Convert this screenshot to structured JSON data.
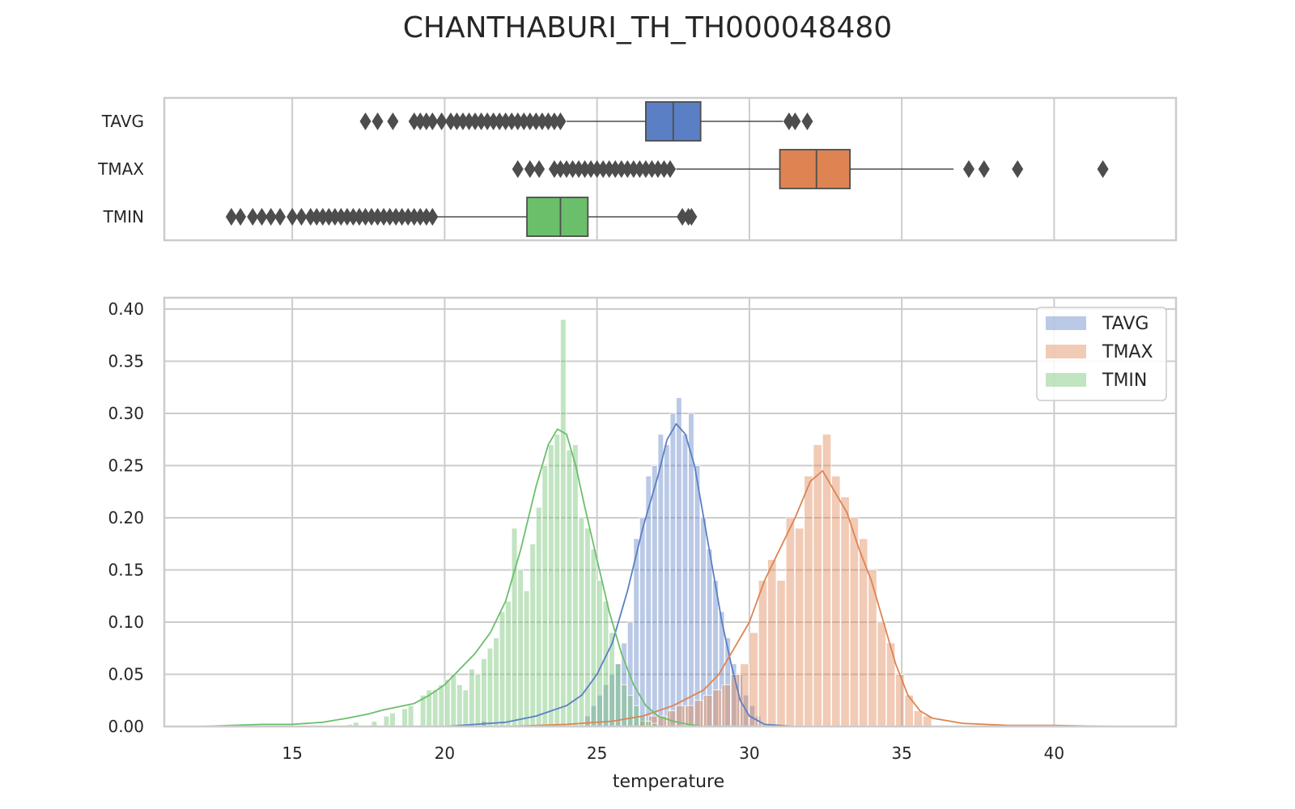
{
  "chart_data": [
    {
      "type": "box",
      "title": "CHANTHABURI_TH_TH000048480",
      "orientation": "horizontal",
      "grid": true,
      "xlim": [
        10.8,
        44.0
      ],
      "series": [
        {
          "name": "TAVG",
          "color": "#5b7fc4",
          "q1": 26.6,
          "median": 27.5,
          "q3": 28.4,
          "whisker_low": 24.0,
          "whisker_high": 31.1,
          "outliers_low": [
            17.4,
            17.8,
            18.3,
            19.0,
            19.2,
            19.4,
            19.6,
            19.9,
            20.2,
            20.4,
            20.6,
            20.8,
            21.0,
            21.2,
            21.4,
            21.6,
            21.8,
            22.0,
            22.2,
            22.4,
            22.6,
            22.8,
            23.0,
            23.2,
            23.4,
            23.6,
            23.8
          ],
          "outliers_high": [
            31.3,
            31.5,
            31.9
          ]
        },
        {
          "name": "TMAX",
          "color": "#dd8452",
          "q1": 31.0,
          "median": 32.2,
          "q3": 33.3,
          "whisker_low": 27.6,
          "whisker_high": 36.7,
          "outliers_low": [
            22.4,
            22.8,
            23.1,
            23.6,
            23.8,
            24.0,
            24.2,
            24.4,
            24.6,
            24.8,
            25.0,
            25.2,
            25.4,
            25.6,
            25.8,
            26.0,
            26.2,
            26.4,
            26.6,
            26.8,
            27.0,
            27.2,
            27.4
          ],
          "outliers_high": [
            37.2,
            37.7,
            38.8,
            41.6
          ]
        },
        {
          "name": "TMIN",
          "color": "#6bbf6b",
          "q1": 22.7,
          "median": 23.8,
          "q3": 24.7,
          "whisker_low": 19.7,
          "whisker_high": 27.7,
          "outliers_low": [
            13.0,
            13.3,
            13.7,
            14.0,
            14.3,
            14.6,
            15.0,
            15.3,
            15.6,
            15.8,
            16.0,
            16.2,
            16.4,
            16.6,
            16.8,
            17.0,
            17.2,
            17.4,
            17.6,
            17.8,
            18.0,
            18.2,
            18.4,
            18.6,
            18.8,
            19.0,
            19.2,
            19.4,
            19.6
          ],
          "outliers_high": [
            27.8,
            28.0,
            28.1
          ]
        }
      ]
    },
    {
      "type": "histogram",
      "xlabel": "temperature",
      "ylabel": "",
      "xlim": [
        10.8,
        44.0
      ],
      "ylim": [
        0.0,
        0.4
      ],
      "xticks": [
        15,
        20,
        25,
        30,
        35,
        40
      ],
      "yticks": [
        "0.00",
        "0.05",
        "0.10",
        "0.15",
        "0.20",
        "0.25",
        "0.30",
        "0.35",
        "0.40"
      ],
      "grid": true,
      "legend": {
        "position": "top-right"
      },
      "series": [
        {
          "name": "TAVG",
          "color": "#5b7fc4",
          "bin_width": 0.2,
          "bins": [
            [
              21.2,
              0.005
            ],
            [
              24.6,
              0.01
            ],
            [
              24.8,
              0.02
            ],
            [
              25.0,
              0.03
            ],
            [
              25.2,
              0.04
            ],
            [
              25.4,
              0.05
            ],
            [
              25.6,
              0.06
            ],
            [
              25.8,
              0.08
            ],
            [
              26.0,
              0.1
            ],
            [
              26.2,
              0.18
            ],
            [
              26.4,
              0.2
            ],
            [
              26.6,
              0.24
            ],
            [
              26.8,
              0.25
            ],
            [
              27.0,
              0.28
            ],
            [
              27.2,
              0.27
            ],
            [
              27.4,
              0.3
            ],
            [
              27.6,
              0.315
            ],
            [
              27.8,
              0.28
            ],
            [
              28.0,
              0.3
            ],
            [
              28.2,
              0.25
            ],
            [
              28.4,
              0.2
            ],
            [
              28.6,
              0.17
            ],
            [
              28.8,
              0.14
            ],
            [
              29.0,
              0.11
            ],
            [
              29.2,
              0.085
            ],
            [
              29.4,
              0.06
            ],
            [
              29.6,
              0.05
            ],
            [
              29.8,
              0.03
            ],
            [
              30.0,
              0.02
            ],
            [
              30.2,
              0.01
            ]
          ],
          "kde": [
            [
              20.0,
              0.0
            ],
            [
              21.0,
              0.002
            ],
            [
              22.0,
              0.004
            ],
            [
              23.0,
              0.01
            ],
            [
              24.0,
              0.02
            ],
            [
              24.5,
              0.03
            ],
            [
              25.0,
              0.05
            ],
            [
              25.5,
              0.08
            ],
            [
              26.0,
              0.13
            ],
            [
              26.5,
              0.19
            ],
            [
              27.0,
              0.24
            ],
            [
              27.3,
              0.275
            ],
            [
              27.6,
              0.29
            ],
            [
              27.9,
              0.28
            ],
            [
              28.2,
              0.25
            ],
            [
              28.5,
              0.2
            ],
            [
              28.8,
              0.15
            ],
            [
              29.1,
              0.1
            ],
            [
              29.4,
              0.06
            ],
            [
              29.7,
              0.025
            ],
            [
              30.0,
              0.01
            ],
            [
              30.5,
              0.002
            ],
            [
              31.5,
              0.0
            ]
          ]
        },
        {
          "name": "TMAX",
          "color": "#dd8452",
          "bin_width": 0.3,
          "bins": [
            [
              26.4,
              0.005
            ],
            [
              26.7,
              0.01
            ],
            [
              27.0,
              0.01
            ],
            [
              27.3,
              0.015
            ],
            [
              27.6,
              0.02
            ],
            [
              27.9,
              0.02
            ],
            [
              28.2,
              0.025
            ],
            [
              28.5,
              0.03
            ],
            [
              28.8,
              0.035
            ],
            [
              29.1,
              0.04
            ],
            [
              29.4,
              0.05
            ],
            [
              29.7,
              0.06
            ],
            [
              30.0,
              0.09
            ],
            [
              30.3,
              0.14
            ],
            [
              30.6,
              0.16
            ],
            [
              30.9,
              0.14
            ],
            [
              31.2,
              0.2
            ],
            [
              31.5,
              0.19
            ],
            [
              31.8,
              0.24
            ],
            [
              32.1,
              0.27
            ],
            [
              32.4,
              0.28
            ],
            [
              32.7,
              0.24
            ],
            [
              33.0,
              0.22
            ],
            [
              33.3,
              0.2
            ],
            [
              33.6,
              0.18
            ],
            [
              33.9,
              0.15
            ],
            [
              34.2,
              0.1
            ],
            [
              34.5,
              0.08
            ],
            [
              34.8,
              0.05
            ],
            [
              35.1,
              0.03
            ],
            [
              35.4,
              0.015
            ],
            [
              35.7,
              0.01
            ]
          ],
          "kde": [
            [
              22.0,
              0.0
            ],
            [
              24.0,
              0.002
            ],
            [
              25.5,
              0.005
            ],
            [
              26.5,
              0.01
            ],
            [
              27.5,
              0.02
            ],
            [
              28.5,
              0.035
            ],
            [
              29.0,
              0.05
            ],
            [
              29.5,
              0.075
            ],
            [
              30.0,
              0.1
            ],
            [
              30.5,
              0.14
            ],
            [
              31.0,
              0.17
            ],
            [
              31.5,
              0.2
            ],
            [
              32.0,
              0.235
            ],
            [
              32.4,
              0.245
            ],
            [
              32.8,
              0.225
            ],
            [
              33.2,
              0.205
            ],
            [
              33.6,
              0.17
            ],
            [
              34.0,
              0.14
            ],
            [
              34.4,
              0.1
            ],
            [
              34.8,
              0.06
            ],
            [
              35.2,
              0.03
            ],
            [
              35.6,
              0.015
            ],
            [
              36.0,
              0.008
            ],
            [
              37.0,
              0.003
            ],
            [
              38.5,
              0.001
            ],
            [
              40.0,
              0.001
            ],
            [
              42.0,
              0.0
            ]
          ]
        },
        {
          "name": "TMIN",
          "color": "#6bbf6b",
          "bin_width": 0.2,
          "bins": [
            [
              16.8,
              0.002
            ],
            [
              17.0,
              0.004
            ],
            [
              17.6,
              0.005
            ],
            [
              18.0,
              0.01
            ],
            [
              18.2,
              0.013
            ],
            [
              18.6,
              0.017
            ],
            [
              18.8,
              0.02
            ],
            [
              19.2,
              0.03
            ],
            [
              19.4,
              0.035
            ],
            [
              19.6,
              0.035
            ],
            [
              19.8,
              0.04
            ],
            [
              20.0,
              0.045
            ],
            [
              20.2,
              0.05
            ],
            [
              20.4,
              0.04
            ],
            [
              20.6,
              0.035
            ],
            [
              20.8,
              0.055
            ],
            [
              21.0,
              0.05
            ],
            [
              21.2,
              0.065
            ],
            [
              21.4,
              0.075
            ],
            [
              21.6,
              0.085
            ],
            [
              21.8,
              0.11
            ],
            [
              22.0,
              0.12
            ],
            [
              22.2,
              0.19
            ],
            [
              22.4,
              0.15
            ],
            [
              22.6,
              0.13
            ],
            [
              22.8,
              0.175
            ],
            [
              23.0,
              0.21
            ],
            [
              23.2,
              0.25
            ],
            [
              23.4,
              0.27
            ],
            [
              23.6,
              0.28
            ],
            [
              23.8,
              0.39
            ],
            [
              24.0,
              0.265
            ],
            [
              24.2,
              0.27
            ],
            [
              24.4,
              0.2
            ],
            [
              24.6,
              0.19
            ],
            [
              24.8,
              0.17
            ],
            [
              25.0,
              0.14
            ],
            [
              25.2,
              0.12
            ],
            [
              25.4,
              0.09
            ],
            [
              25.6,
              0.06
            ],
            [
              25.8,
              0.04
            ],
            [
              26.0,
              0.03
            ],
            [
              26.2,
              0.02
            ],
            [
              26.4,
              0.01
            ],
            [
              26.6,
              0.005
            ],
            [
              26.8,
              0.003
            ]
          ],
          "kde": [
            [
              12.0,
              0.0
            ],
            [
              13.0,
              0.001
            ],
            [
              14.0,
              0.002
            ],
            [
              15.0,
              0.002
            ],
            [
              16.0,
              0.004
            ],
            [
              16.8,
              0.008
            ],
            [
              17.5,
              0.012
            ],
            [
              18.0,
              0.016
            ],
            [
              18.5,
              0.019
            ],
            [
              19.0,
              0.022
            ],
            [
              19.5,
              0.03
            ],
            [
              20.0,
              0.04
            ],
            [
              20.5,
              0.055
            ],
            [
              21.0,
              0.07
            ],
            [
              21.5,
              0.09
            ],
            [
              22.0,
              0.12
            ],
            [
              22.5,
              0.17
            ],
            [
              23.0,
              0.23
            ],
            [
              23.4,
              0.27
            ],
            [
              23.7,
              0.285
            ],
            [
              24.0,
              0.28
            ],
            [
              24.3,
              0.25
            ],
            [
              24.6,
              0.21
            ],
            [
              25.0,
              0.16
            ],
            [
              25.4,
              0.11
            ],
            [
              25.8,
              0.07
            ],
            [
              26.2,
              0.04
            ],
            [
              26.6,
              0.02
            ],
            [
              27.0,
              0.01
            ],
            [
              27.5,
              0.005
            ],
            [
              28.0,
              0.002
            ],
            [
              28.5,
              0.0
            ]
          ]
        }
      ]
    }
  ]
}
